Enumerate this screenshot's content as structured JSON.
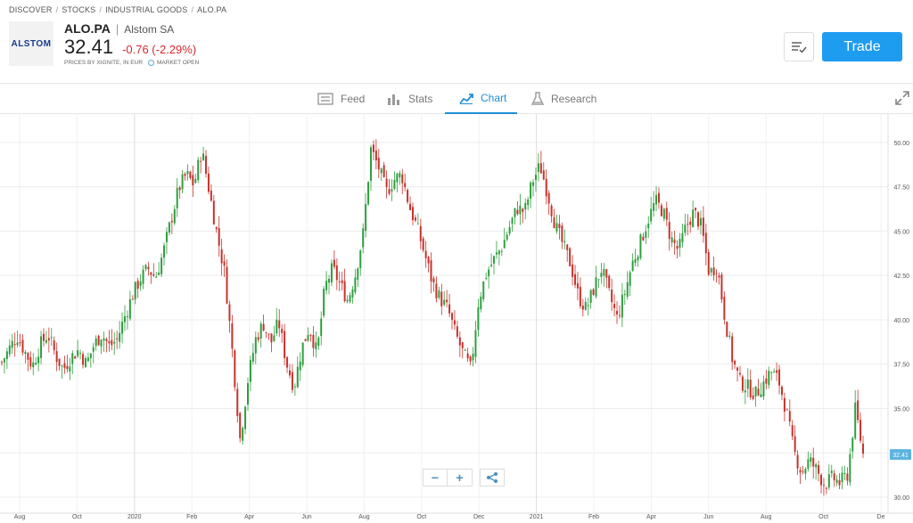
{
  "breadcrumb": [
    "DISCOVER",
    "STOCKS",
    "INDUSTRIAL GOODS",
    "ALO.PA"
  ],
  "instrument": {
    "logo_text": "ALSTOM",
    "ticker": "ALO.PA",
    "name": "Alstom SA",
    "price": "32.41",
    "change": "-0.76 (-2.29%)",
    "source_note": "PRICES BY XIGNITE, IN EUR",
    "market_status": "MARKET OPEN"
  },
  "actions": {
    "trade_label": "Trade"
  },
  "tabs": [
    {
      "label": "Feed",
      "icon": "feed-icon"
    },
    {
      "label": "Stats",
      "icon": "stats-icon"
    },
    {
      "label": "Chart",
      "icon": "chart-icon",
      "active": true
    },
    {
      "label": "Research",
      "icon": "research-icon"
    }
  ],
  "zoom": {
    "out_label": "−",
    "in_label": "+"
  },
  "colors": {
    "up": "#2e9e3e",
    "down": "#c8322c",
    "accent": "#1e9cf0",
    "negative": "#d2292d",
    "price_tag": "#5bb3e0"
  },
  "chart_data": {
    "type": "candlestick",
    "y_ticks": [
      "50.00",
      "47.50",
      "45.00",
      "42.50",
      "40.00",
      "37.50",
      "35.00",
      "32.50",
      "30.00"
    ],
    "ylim": [
      29.5,
      51.5
    ],
    "x_ticks": [
      "Aug",
      "Oct",
      "2020",
      "Feb",
      "Apr",
      "Jun",
      "Aug",
      "Oct",
      "Dec",
      "2021",
      "Feb",
      "Apr",
      "Jun",
      "Aug",
      "Oct",
      "De"
    ],
    "current_price_label": "32.41",
    "closes": [
      37.6,
      38.4,
      39.1,
      38.2,
      37.4,
      38.6,
      39.2,
      38.0,
      37.2,
      37.9,
      38.3,
      37.5,
      38.6,
      39.2,
      38.5,
      38.9,
      40.2,
      41.4,
      42.3,
      42.9,
      42.4,
      43.8,
      45.6,
      47.4,
      48.2,
      47.6,
      49.6,
      47.2,
      44.8,
      42.6,
      38.1,
      33.2,
      36.6,
      38.9,
      39.8,
      38.7,
      39.9,
      37.6,
      36.2,
      38.4,
      39.6,
      38.1,
      41.8,
      42.9,
      42.0,
      41.1,
      42.6,
      44.9,
      49.6,
      48.6,
      47.2,
      47.9,
      48.2,
      46.4,
      45.2,
      43.7,
      42.1,
      41.2,
      40.6,
      39.2,
      38.1,
      37.2,
      41.1,
      42.6,
      43.4,
      44.1,
      45.2,
      46.3,
      46.1,
      47.8,
      48.7,
      47.1,
      45.3,
      44.2,
      43.1,
      41.3,
      40.6,
      41.8,
      42.9,
      41.4,
      40.1,
      41.5,
      43.2,
      44.3,
      45.6,
      46.7,
      46.1,
      44.6,
      43.9,
      45.3,
      46.1,
      45.2,
      42.6,
      43.1,
      40.2,
      37.8,
      36.5,
      36.2,
      35.8,
      36.4,
      37.1,
      36.6,
      34.9,
      32.6,
      31.4,
      32.1,
      31.5,
      30.7,
      31.1,
      30.8,
      31.3,
      35.0,
      32.41
    ]
  }
}
